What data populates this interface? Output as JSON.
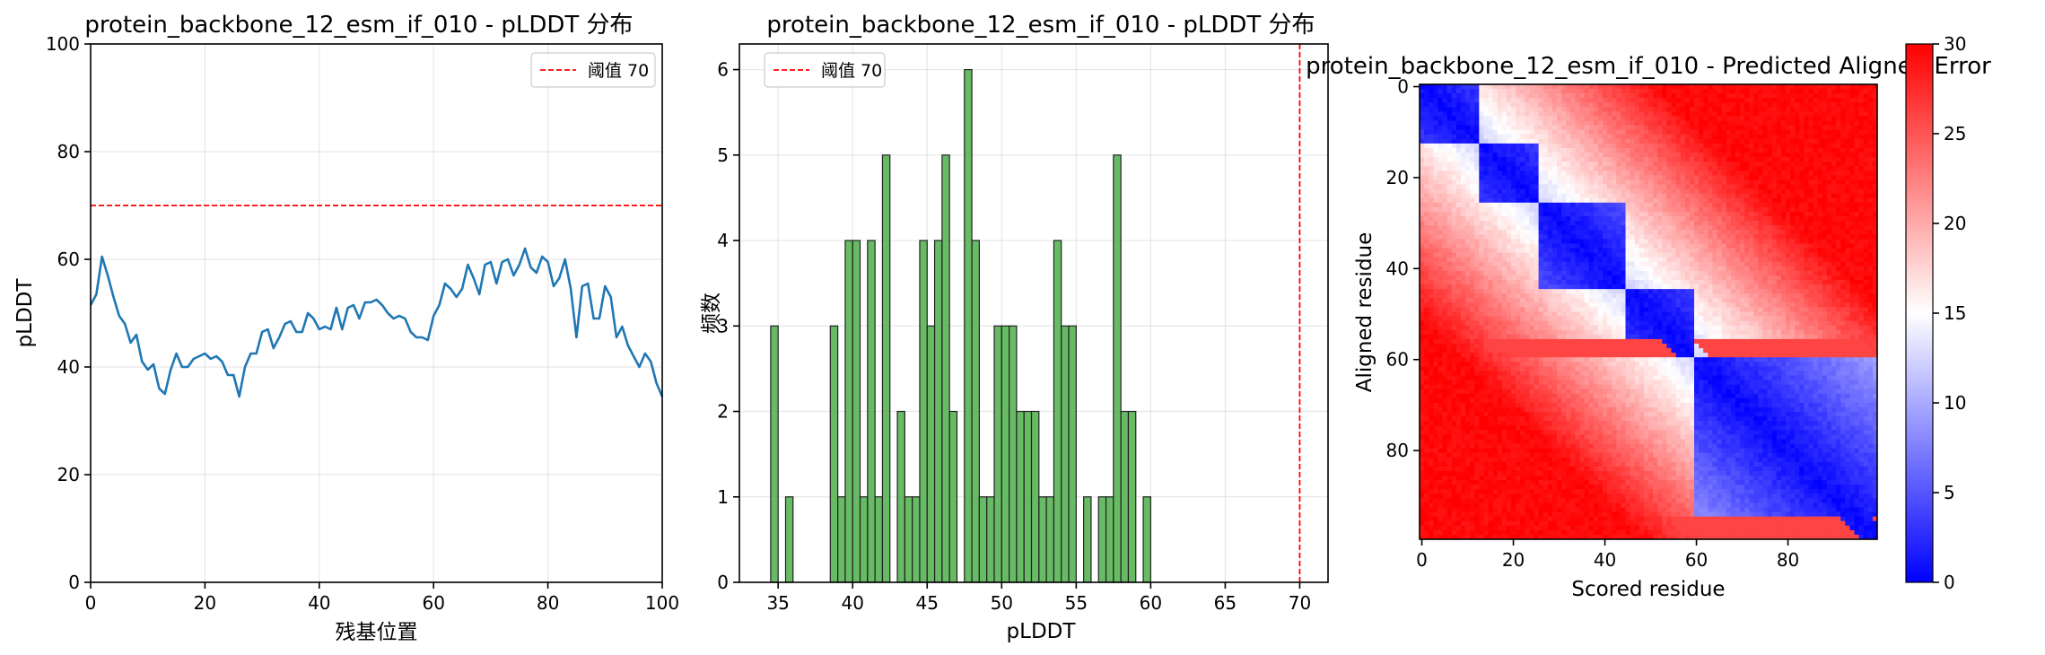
{
  "chart_data": [
    {
      "type": "line",
      "title": "protein_backbone_12_esm_if_010 - pLDDT 分布",
      "xlabel": "残基位置",
      "ylabel": "pLDDT",
      "xlim": [
        0,
        100
      ],
      "ylim": [
        0,
        100
      ],
      "xticks": [
        0,
        20,
        40,
        60,
        80,
        100
      ],
      "yticks": [
        0,
        20,
        40,
        60,
        80,
        100
      ],
      "grid": true,
      "legend_position": "top-right",
      "series": [
        {
          "color": "#1f77b4",
          "x": [
            0,
            1,
            2,
            3,
            4,
            5,
            6,
            7,
            8,
            9,
            10,
            11,
            12,
            13,
            14,
            15,
            16,
            17,
            18,
            19,
            20,
            21,
            22,
            23,
            24,
            25,
            26,
            27,
            28,
            29,
            30,
            31,
            32,
            33,
            34,
            35,
            36,
            37,
            38,
            39,
            40,
            41,
            42,
            43,
            44,
            45,
            46,
            47,
            48,
            49,
            50,
            51,
            52,
            53,
            54,
            55,
            56,
            57,
            58,
            59,
            60,
            61,
            62,
            63,
            64,
            65,
            66,
            67,
            68,
            69,
            70,
            71,
            72,
            73,
            74,
            75,
            76,
            77,
            78,
            79,
            80,
            81,
            82,
            83,
            84,
            85,
            86,
            87,
            88,
            89,
            90,
            91,
            92,
            93,
            94,
            95,
            96,
            97,
            98,
            99,
            100
          ],
          "y": [
            51.5,
            53.5,
            60.5,
            57,
            53,
            49.5,
            48,
            44.5,
            46,
            41,
            39.5,
            40.5,
            36,
            35,
            39.5,
            42.5,
            40,
            40,
            41.5,
            42,
            42.5,
            41.5,
            42,
            41,
            38.5,
            38.5,
            34.5,
            40,
            42.5,
            42.5,
            46.5,
            47,
            43.5,
            45.5,
            48,
            48.5,
            46.5,
            46.5,
            50,
            49,
            47,
            47.5,
            47,
            51,
            47,
            51,
            51.5,
            49,
            52,
            52,
            52.5,
            51.5,
            50,
            49,
            49.5,
            49,
            46.5,
            45.5,
            45.5,
            45,
            49.5,
            51.5,
            55.5,
            54.5,
            53,
            54.5,
            59,
            56.5,
            53.5,
            59,
            59.5,
            55.5,
            59.5,
            60,
            57,
            59,
            62,
            58.5,
            57.5,
            60.5,
            59.5,
            55,
            56.5,
            60,
            54.5,
            45.5,
            55,
            55.5,
            49,
            49,
            55,
            53,
            45.5,
            47.5,
            44,
            42,
            40,
            42.5,
            41,
            37,
            34.5
          ]
        },
        {
          "name": "阈值 70",
          "type": "hline",
          "y": 70,
          "color": "#ff0000",
          "style": "dashed"
        }
      ]
    },
    {
      "type": "bar",
      "title": "protein_backbone_12_esm_if_010 - pLDDT 分布",
      "xlabel": "pLDDT",
      "ylabel": "频数",
      "xlim": [
        32.4,
        71.9
      ],
      "ylim": [
        0,
        6.3
      ],
      "xticks": [
        35,
        40,
        45,
        50,
        55,
        60,
        65,
        70
      ],
      "yticks": [
        0,
        1,
        2,
        3,
        4,
        5,
        6
      ],
      "grid": true,
      "legend_position": "top-left",
      "bar_color": "#4daf4a",
      "bin_width": 0.5,
      "bins_left": [
        34.5,
        35.0,
        35.5,
        36.0,
        36.5,
        37.0,
        37.5,
        38.0,
        38.5,
        39.0,
        39.5,
        40.0,
        40.5,
        41.0,
        41.5,
        42.0,
        42.5,
        43.0,
        43.5,
        44.0,
        44.5,
        45.0,
        45.5,
        46.0,
        46.5,
        47.0,
        47.5,
        48.0,
        48.5,
        49.0,
        49.5,
        50.0,
        50.5,
        51.0,
        51.5,
        52.0,
        52.5,
        53.0,
        53.5,
        54.0,
        54.5,
        55.0,
        55.5,
        56.0,
        56.5,
        57.0,
        57.5,
        58.0,
        58.5,
        59.0,
        59.5,
        60.0,
        60.5,
        61.0,
        61.5,
        62.0
      ],
      "counts": [
        3,
        0,
        1,
        0,
        0,
        0,
        0,
        0,
        3,
        1,
        4,
        4,
        1,
        4,
        1,
        5,
        0,
        2,
        1,
        1,
        4,
        3,
        4,
        5,
        2,
        0,
        6,
        4,
        1,
        1,
        3,
        3,
        3,
        2,
        2,
        2,
        1,
        1,
        4,
        3,
        3,
        0,
        1,
        0,
        1,
        1,
        5,
        2,
        2,
        0,
        1,
        0,
        0,
        0,
        0,
        0
      ],
      "series": [
        {
          "name": "阈值 70",
          "type": "vline",
          "x": 70,
          "color": "#ff0000",
          "style": "dashed"
        }
      ]
    },
    {
      "type": "heatmap",
      "title": "protein_backbone_12_esm_if_010 - Predicted Aligned Error",
      "xlabel": "Scored residue",
      "ylabel": "Aligned residue",
      "size": 100,
      "xticks": [
        0,
        20,
        40,
        60,
        80
      ],
      "yticks": [
        0,
        20,
        40,
        60,
        80
      ],
      "colormap": "bwr",
      "vmin": 0,
      "vmax": 30,
      "colorbar_ticks": [
        0,
        5,
        10,
        15,
        20,
        25,
        30
      ],
      "domains": [
        [
          0,
          13
        ],
        [
          13,
          26
        ],
        [
          26,
          45
        ],
        [
          45,
          60
        ],
        [
          60,
          100
        ]
      ],
      "high_error_rows": [
        [
          56,
          60
        ],
        [
          95,
          100
        ]
      ]
    }
  ]
}
